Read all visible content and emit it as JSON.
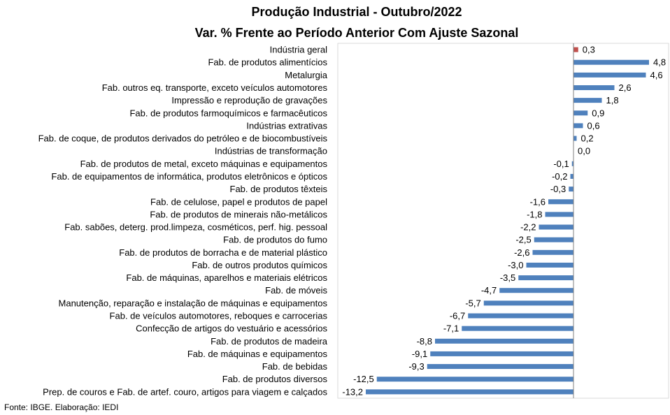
{
  "chart_data": {
    "type": "bar",
    "orientation": "horizontal",
    "title": "Produção Industrial - Outubro/2022",
    "subtitle": "Var. % Frente ao Período Anterior Com Ajuste Sazonal",
    "xlim": [
      -13.2,
      4.8
    ],
    "grid": false,
    "bar_color": "#4f81bd",
    "highlight_color": "#c0504d",
    "categories": [
      "Indústria geral",
      "Fab. de produtos alimentícios",
      "Metalurgia",
      "Fab. outros eq. transporte, exceto veículos automotores",
      "Impressão e reprodução de gravações",
      "Fab. de produtos farmoquímicos e farmacêuticos",
      "Indústrias extrativas",
      "Fab. de coque, de produtos derivados do petróleo e de biocombustíveis",
      "Indústrias de transformação",
      "Fab. de produtos de metal, exceto máquinas e equipamentos",
      "Fab. de equipamentos de informática, produtos eletrônicos e ópticos",
      "Fab. de produtos têxteis",
      "Fab. de celulose, papel e produtos de papel",
      "Fab. de produtos de minerais não-metálicos",
      "Fab. sabões, deterg. prod.limpeza, cosméticos, perf. hig. pessoal",
      "Fab. de produtos do fumo",
      "Fab. de produtos de borracha e de material plástico",
      "Fab. de outros produtos químicos",
      "Fab. de máquinas, aparelhos e materiais elétricos",
      "Fab. de móveis",
      "Manutenção, reparação e instalação de máquinas e equipamentos",
      "Fab. de veículos automotores, reboques e carrocerias",
      "Confecção de artigos do vestuário e acessórios",
      "Fab. de produtos de madeira",
      "Fab. de máquinas e equipamentos",
      "Fab. de bebidas",
      "Fab. de produtos diversos",
      "Prep. de couros e Fab. de artef. couro, artigos para viagem e calçados"
    ],
    "values": [
      0.3,
      4.8,
      4.6,
      2.6,
      1.8,
      0.9,
      0.6,
      0.2,
      0.0,
      -0.1,
      -0.2,
      -0.3,
      -1.6,
      -1.8,
      -2.2,
      -2.5,
      -2.6,
      -3.0,
      -3.5,
      -4.7,
      -5.7,
      -6.7,
      -7.1,
      -8.8,
      -9.1,
      -9.3,
      -12.5,
      -13.2
    ],
    "value_labels": [
      "0,3",
      "4,8",
      "4,6",
      "2,6",
      "1,8",
      "0,9",
      "0,6",
      "0,2",
      "0,0",
      "-0,1",
      "-0,2",
      "-0,3",
      "-1,6",
      "-1,8",
      "-2,2",
      "-2,5",
      "-2,6",
      "-3,0",
      "-3,5",
      "-4,7",
      "-5,7",
      "-6,7",
      "-7,1",
      "-8,8",
      "-9,1",
      "-9,3",
      "-12,5",
      "-13,2"
    ],
    "highlight_category": "Indústria geral"
  },
  "footer": {
    "source": "Fonte: IBGE. Elaboração: IEDI"
  }
}
